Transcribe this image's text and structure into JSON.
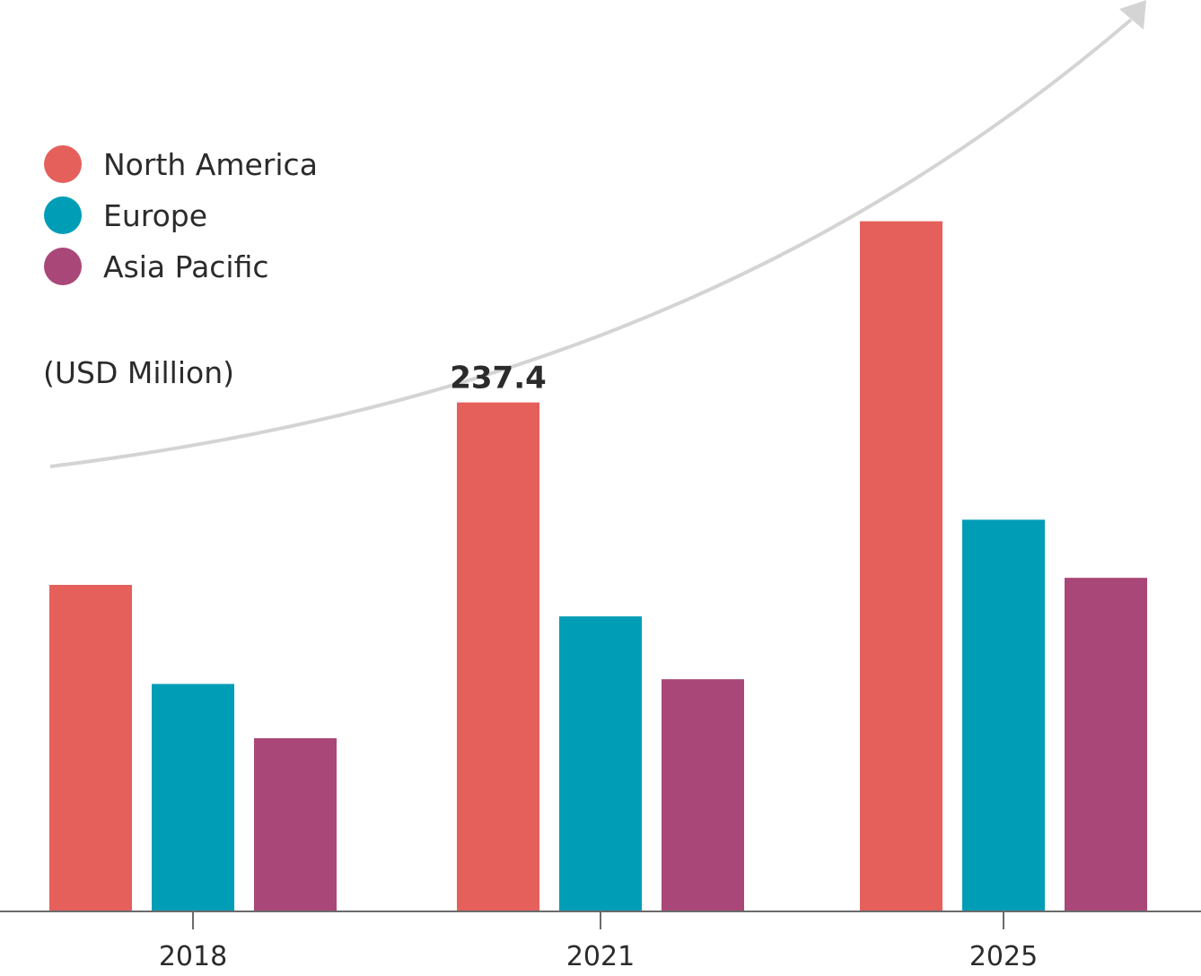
{
  "chart_data": {
    "type": "bar",
    "categories": [
      "2018",
      "2021",
      "2025"
    ],
    "series": [
      {
        "name": "North America",
        "color": "#e5605b",
        "values": [
          152.3,
          237.4,
          321.9
        ]
      },
      {
        "name": "Europe",
        "color": "#009db6",
        "values": [
          106.1,
          137.6,
          182.7
        ]
      },
      {
        "name": "Asia Pacific",
        "color": "#aa4779",
        "values": [
          80.8,
          108.3,
          155.6
        ]
      }
    ],
    "unit_label": "(USD Million)",
    "data_labels": [
      {
        "series": 0,
        "category": 1,
        "text": "237.4"
      }
    ],
    "ylim": [
      0,
      400
    ],
    "legend_position": "top-left",
    "grid": false,
    "trend_arrow": true,
    "colors": {
      "axis": "#6b6b6b",
      "arrow": "#d4d4d4",
      "text": "#2b2b2b"
    }
  }
}
